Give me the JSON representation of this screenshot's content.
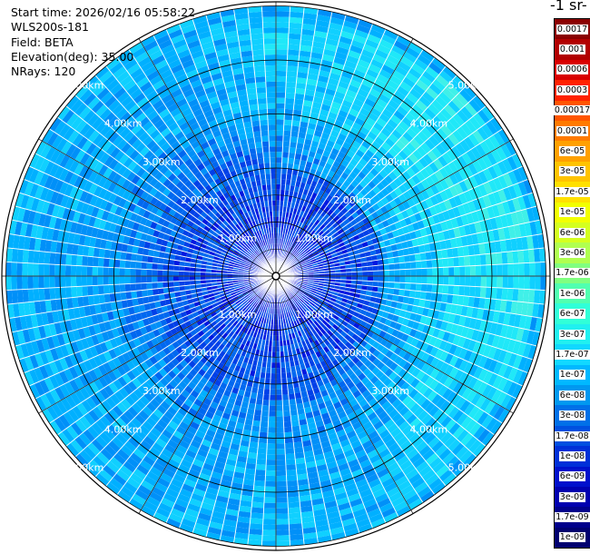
{
  "header": {
    "start_time": "Start time: 2026/02/16 05:58:22",
    "instrument": "WLS200s-181",
    "field": "Field: BETA",
    "elevation": "Elevation(deg): 35.00",
    "nrays": "NRays: 120"
  },
  "colorbar": {
    "title": "-1 sr-",
    "labels": [
      "0.0017",
      "0.001",
      "0.0006",
      "0.0003",
      "0.00017",
      "0.0001",
      "6e-05",
      "3e-05",
      "1.7e-05",
      "1e-05",
      "6e-06",
      "3e-06",
      "1.7e-06",
      "1e-06",
      "6e-07",
      "3e-07",
      "1.7e-07",
      "1e-07",
      "6e-08",
      "3e-08",
      "1.7e-08",
      "1e-08",
      "6e-09",
      "3e-09",
      "1.7e-09",
      "1e-09"
    ],
    "colors": [
      "#8b0000",
      "#b20000",
      "#d90000",
      "#ff2200",
      "#ff5500",
      "#ff7a00",
      "#ffa000",
      "#ffc300",
      "#ffe000",
      "#f2ff00",
      "#d4ff20",
      "#b0ff50",
      "#80ff80",
      "#50ffb0",
      "#30ffd8",
      "#20f0f0",
      "#10d8ff",
      "#00b8ff",
      "#0098f0",
      "#0070e8",
      "#0050e0",
      "#0030d8",
      "#0010cc",
      "#0000b0",
      "#00008c",
      "#000070"
    ]
  },
  "range_labels": [
    "1.00km",
    "2.00km",
    "3.00km",
    "4.00km",
    "5.00km"
  ],
  "ppi": {
    "nrays": 120,
    "max_range_km": 5.0
  }
}
